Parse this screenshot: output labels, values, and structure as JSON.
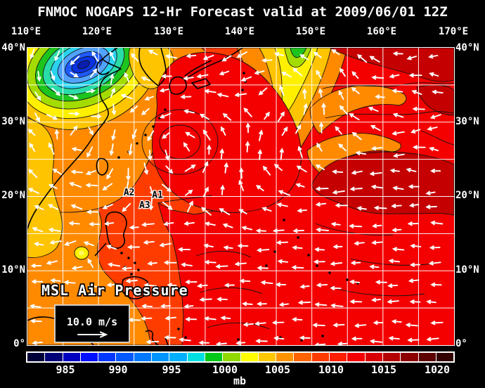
{
  "title": "FNMOC NOGAPS 12-Hr Forecast valid at 2009/06/01 12Z",
  "map": {
    "xticks_top": [
      "110°E",
      "120°E",
      "130°E",
      "140°E",
      "150°E",
      "160°E",
      "170°E"
    ],
    "yticks_left": [
      "40°N",
      "30°N",
      "20°N",
      "10°N",
      "0°"
    ],
    "yticks_right": [
      "40°N",
      "30°N",
      "20°N",
      "10°N",
      "0°"
    ]
  },
  "overlay": {
    "variable_label": "MSL Air Pressure",
    "wind_scale_label": "10.0 m/s"
  },
  "colorbar": {
    "unit": "mb",
    "tick_labels": [
      "985",
      "990",
      "995",
      "1000",
      "1005",
      "1010",
      "1015",
      "1020"
    ],
    "swatches": [
      "#000038",
      "#000078",
      "#0000C0",
      "#0010FF",
      "#0038FF",
      "#0058FF",
      "#0078FF",
      "#0094FF",
      "#00B0FF",
      "#00E0E0",
      "#00C818",
      "#90D800",
      "#FFFF00",
      "#FFC800",
      "#FF9400",
      "#FF6400",
      "#FF3C00",
      "#FF1E00",
      "#F40000",
      "#D80000",
      "#B40000",
      "#8C0000",
      "#5C0000",
      "#320000"
    ]
  },
  "chart_data": {
    "type": "heatmap",
    "title": "FNMOC NOGAPS 12-Hr Forecast valid at 2009/06/01 12Z",
    "variable": "MSL Air Pressure",
    "units": "mb",
    "lon_range_deg_e": [
      110,
      170
    ],
    "lat_range_deg_n": [
      0,
      40
    ],
    "grid_interval_deg": 5,
    "tick_interval_deg": 10,
    "pressure_scale_mb": [
      985,
      990,
      995,
      1000,
      1005,
      1010,
      1015,
      1020
    ],
    "pressure_range_mb": [
      982.5,
      1022.5
    ],
    "contour_interval_mb": 2.5,
    "wind_vector_reference_ms": 10.0,
    "pressure_features": [
      {
        "kind": "extratropical-low",
        "lon": 117.5,
        "lat": 38.7,
        "central_mb": 984,
        "spin": 1.5,
        "radius_deg": 7
      },
      {
        "kind": "cyclonic-circulation",
        "lon": 131.5,
        "lat": 27.3,
        "central_mb": 1012.5,
        "spin": 1.35,
        "radius_deg": 8.5
      },
      {
        "kind": "weak-low",
        "lon": 117.6,
        "lat": 12.4,
        "central_mb": 1004,
        "spin": 1.0,
        "radius_deg": 2.8
      },
      {
        "kind": "trough",
        "lon": 145.0,
        "lat": 36.0,
        "central_mb": 1000,
        "spin": 0.8,
        "radius_deg": 8
      },
      {
        "kind": "subtropical-high",
        "lon": 158.0,
        "lat": 16.0,
        "central_mb": 1016,
        "spin": 0,
        "radius_deg": 9
      },
      {
        "kind": "high",
        "lon": 162.0,
        "lat": 39.0,
        "central_mb": 1016,
        "spin": 0,
        "radius_deg": 6
      }
    ],
    "storm_markers": [
      {
        "label": "A2",
        "lon": 124.3,
        "lat": 20.5
      },
      {
        "label": "A1",
        "lon": 128.3,
        "lat": 20.2
      },
      {
        "label": "A3",
        "lon": 126.5,
        "lat": 18.8
      }
    ]
  }
}
